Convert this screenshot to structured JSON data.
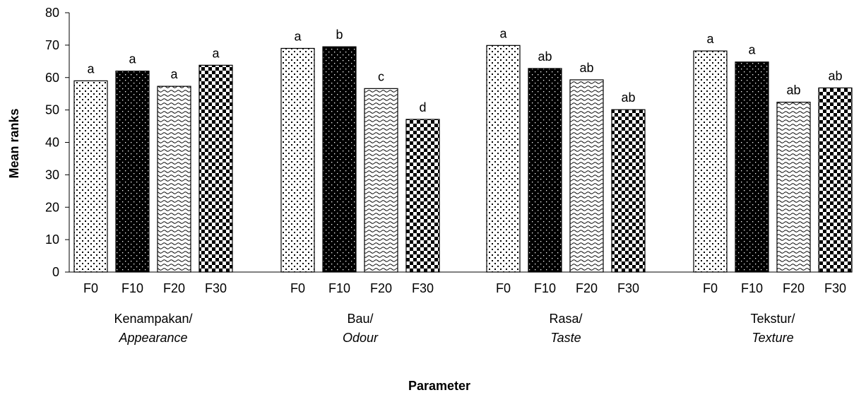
{
  "chart_data": {
    "type": "bar",
    "xlabel": "Parameter",
    "ylabel": "Mean ranks",
    "ylim": [
      0,
      80
    ],
    "yticks": [
      "0",
      "10",
      "20",
      "30",
      "40",
      "50",
      "60",
      "70",
      "80"
    ],
    "grid": false,
    "legend": "none",
    "groups": [
      {
        "label_line1": "Kenampakan/",
        "label_line2": "Appearance",
        "bars": [
          {
            "name": "F0",
            "value": 59.0,
            "letter": "a"
          },
          {
            "name": "F10",
            "value": 62.0,
            "letter": "a"
          },
          {
            "name": "F20",
            "value": 57.3,
            "letter": "a"
          },
          {
            "name": "F30",
            "value": 63.8,
            "letter": "a"
          }
        ]
      },
      {
        "label_line1": "Bau/",
        "label_line2": "Odour",
        "bars": [
          {
            "name": "F0",
            "value": 69.0,
            "letter": "a"
          },
          {
            "name": "F10",
            "value": 69.5,
            "letter": "b"
          },
          {
            "name": "F20",
            "value": 56.6,
            "letter": "c"
          },
          {
            "name": "F30",
            "value": 47.1,
            "letter": "d"
          }
        ]
      },
      {
        "label_line1": "Rasa/",
        "label_line2": "Taste",
        "bars": [
          {
            "name": "F0",
            "value": 69.9,
            "letter": "a"
          },
          {
            "name": "F10",
            "value": 62.8,
            "letter": "ab"
          },
          {
            "name": "F20",
            "value": 59.3,
            "letter": "ab"
          },
          {
            "name": "F30",
            "value": 50.1,
            "letter": "ab"
          }
        ]
      },
      {
        "label_line1": "Tekstur/",
        "label_line2": "Texture",
        "bars": [
          {
            "name": "F0",
            "value": 68.2,
            "letter": "a"
          },
          {
            "name": "F10",
            "value": 64.8,
            "letter": "a"
          },
          {
            "name": "F20",
            "value": 52.4,
            "letter": "ab"
          },
          {
            "name": "F30",
            "value": 56.8,
            "letter": "ab"
          }
        ]
      }
    ]
  }
}
